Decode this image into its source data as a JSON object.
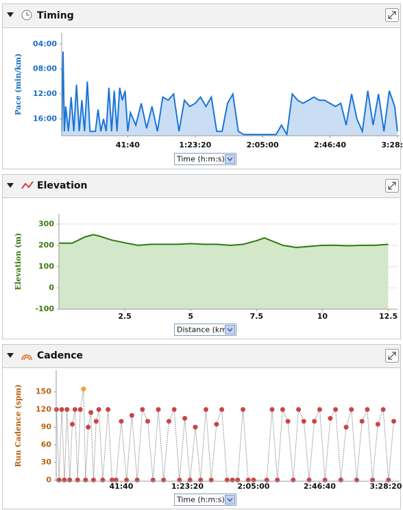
{
  "chart_data": [
    {
      "type": "area",
      "title": "Timing",
      "y_label": "Pace (min/km)",
      "x_label": "Time (h:m:s)",
      "line_color": "#1a74d6",
      "fill_color": "#c9def5",
      "label_color": "#1a6fc4",
      "grid": false,
      "xlim": [
        50,
        12580
      ],
      "ylim": [
        18.7,
        2.2
      ],
      "xticks": [
        {
          "value": 2500,
          "label": "41:40"
        },
        {
          "value": 5000,
          "label": "1:23:20"
        },
        {
          "value": 7500,
          "label": "2:05:00"
        },
        {
          "value": 10000,
          "label": "2:46:40"
        },
        {
          "value": 12500,
          "label": "3:28:20"
        }
      ],
      "yticks": [
        {
          "value": 4,
          "label": "04:00"
        },
        {
          "value": 8,
          "label": "08:00"
        },
        {
          "value": 12,
          "label": "12:00"
        },
        {
          "value": 16,
          "label": "16:00"
        }
      ],
      "x": [
        50,
        100,
        150,
        200,
        300,
        400,
        500,
        600,
        700,
        800,
        900,
        1000,
        1100,
        1200,
        1300,
        1400,
        1500,
        1600,
        1700,
        1800,
        1900,
        2000,
        2100,
        2200,
        2300,
        2400,
        2500,
        2600,
        2800,
        3000,
        3200,
        3400,
        3600,
        3800,
        4000,
        4200,
        4400,
        4600,
        4800,
        5000,
        5200,
        5400,
        5600,
        5800,
        6000,
        6200,
        6400,
        6600,
        6800,
        7000,
        7500,
        8000,
        8200,
        8400,
        8600,
        8800,
        9000,
        9200,
        9400,
        9600,
        9800,
        10000,
        10200,
        10400,
        10600,
        10800,
        11000,
        11200,
        11400,
        11600,
        11800,
        12000,
        12200,
        12400,
        12500
      ],
      "values": [
        18,
        5.2,
        18,
        14,
        18,
        12.5,
        18,
        10.5,
        18,
        13,
        18,
        10,
        18,
        18,
        18,
        14.5,
        18,
        16,
        18,
        11,
        18,
        11.5,
        18,
        11,
        13,
        11.5,
        18,
        15,
        17,
        13.5,
        17.5,
        14,
        18,
        12.5,
        13,
        12,
        18,
        13,
        14,
        13.5,
        12.5,
        14,
        12.5,
        18,
        18,
        13.5,
        12,
        18,
        18.5,
        18.5,
        18.5,
        18.5,
        17,
        18.5,
        12,
        13,
        13.5,
        13,
        12.5,
        13,
        13,
        13.5,
        14,
        13.5,
        17,
        12,
        16,
        18,
        11.5,
        17,
        12,
        18,
        11.5,
        14,
        18
      ]
    },
    {
      "type": "area",
      "title": "Elevation",
      "y_label": "Elevation (m)",
      "x_label": "Distance (km)",
      "line_color": "#2d7a0e",
      "fill_color": "#d3e8c9",
      "label_color": "#3a7a12",
      "grid": true,
      "xlim": [
        0,
        12.85
      ],
      "ylim": [
        -100,
        348
      ],
      "xticks": [
        2.5,
        5,
        7.5,
        10,
        12.5
      ],
      "yticks": [
        -100,
        0,
        100,
        200,
        300
      ],
      "x": [
        0,
        0.5,
        1,
        1.3,
        1.5,
        2,
        2.5,
        3,
        3.5,
        4,
        4.5,
        5,
        5.5,
        6,
        6.5,
        7,
        7.5,
        7.8,
        8,
        8.5,
        9,
        9.5,
        10,
        10.5,
        11,
        11.5,
        12,
        12.5
      ],
      "values": [
        210,
        210,
        240,
        250,
        245,
        225,
        212,
        200,
        205,
        205,
        205,
        208,
        205,
        205,
        200,
        205,
        222,
        235,
        225,
        200,
        190,
        195,
        200,
        200,
        198,
        200,
        200,
        205
      ]
    },
    {
      "type": "scatter",
      "title": "Cadence",
      "y_label": "Run Cadence (spm)",
      "x_label": "Time (h:m:s)",
      "line_color": "#9a9a9a",
      "marker_color": "#c94545",
      "max_marker_color": "#f0a030",
      "label_color": "#b8600c",
      "grid": false,
      "xlim": [
        40,
        13020
      ],
      "ylim": [
        -2,
        187
      ],
      "xticks": [
        {
          "value": 2500,
          "label": "41:40"
        },
        {
          "value": 5000,
          "label": "1:23:20"
        },
        {
          "value": 7500,
          "label": "2:05:00"
        },
        {
          "value": 10000,
          "label": "2:46:40"
        },
        {
          "value": 12500,
          "label": "3:28:20"
        }
      ],
      "yticks": [
        0,
        30,
        60,
        90,
        120,
        150
      ],
      "x": [
        50,
        150,
        250,
        350,
        450,
        550,
        650,
        750,
        850,
        950,
        1075,
        1150,
        1250,
        1350,
        1450,
        1550,
        1650,
        1800,
        2000,
        2150,
        2300,
        2500,
        2700,
        2900,
        3100,
        3300,
        3500,
        3700,
        3900,
        4100,
        4300,
        4500,
        4700,
        4900,
        5100,
        5300,
        5500,
        5700,
        5900,
        6100,
        6300,
        6500,
        6700,
        6900,
        7100,
        7300,
        7500,
        8000,
        8200,
        8400,
        8600,
        8800,
        9000,
        9200,
        9400,
        9600,
        9800,
        10000,
        10200,
        10400,
        10600,
        10800,
        11000,
        11200,
        11400,
        11600,
        11800,
        12000,
        12200,
        12400,
        12600,
        12800
      ],
      "values": [
        120,
        0,
        120,
        0,
        120,
        0,
        95,
        120,
        0,
        120,
        155,
        0,
        90,
        115,
        0,
        100,
        120,
        0,
        120,
        0,
        0,
        100,
        0,
        110,
        0,
        120,
        100,
        0,
        120,
        0,
        100,
        120,
        0,
        105,
        0,
        90,
        0,
        120,
        0,
        95,
        120,
        0,
        0,
        0,
        120,
        0,
        0,
        0,
        120,
        0,
        120,
        100,
        0,
        120,
        100,
        0,
        100,
        120,
        0,
        105,
        120,
        0,
        90,
        120,
        0,
        100,
        120,
        0,
        95,
        120,
        0,
        100
      ]
    }
  ]
}
